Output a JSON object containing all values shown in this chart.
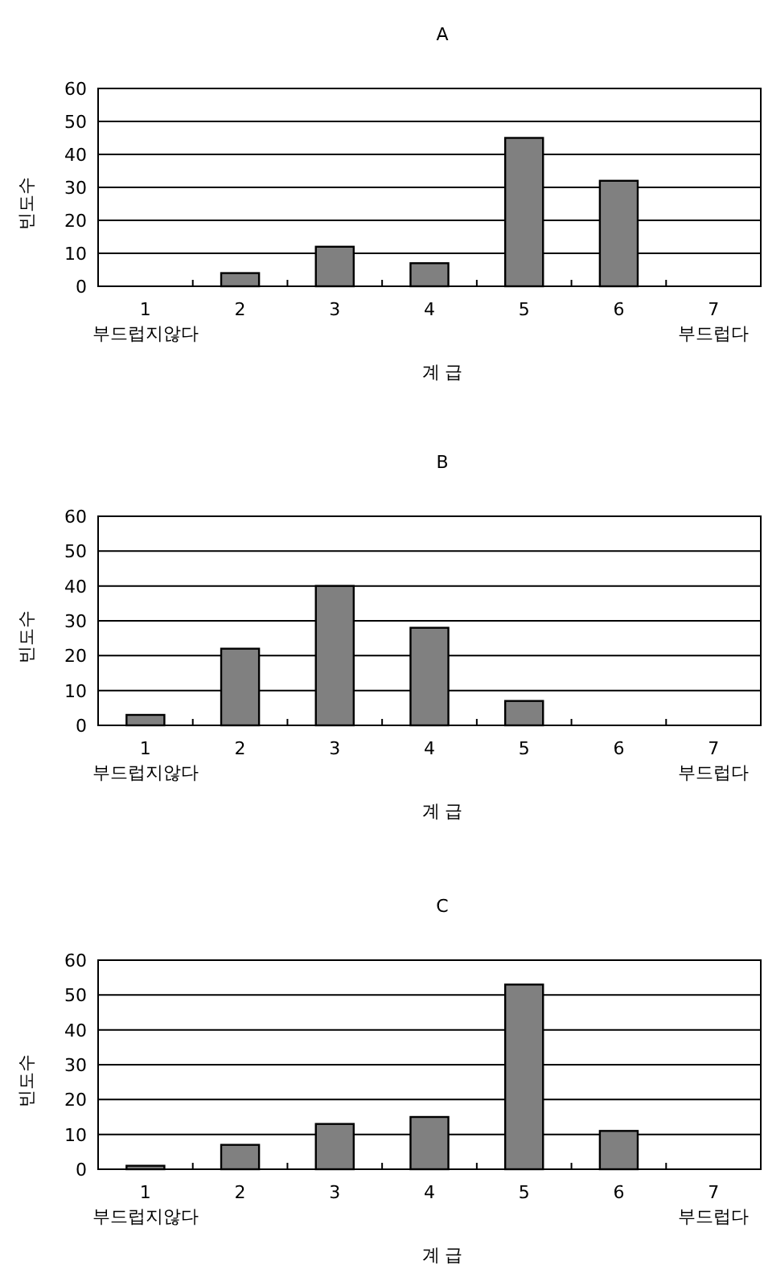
{
  "chart_data": [
    {
      "type": "bar",
      "title": "A",
      "xlabel": "계 급",
      "ylabel": "빈도수",
      "categories": [
        "1\n부드럽지않다",
        "2",
        "3",
        "4",
        "5",
        "6",
        "7\n부드럽다"
      ],
      "values": [
        0,
        4,
        12,
        7,
        45,
        32,
        0
      ],
      "color": "#808080",
      "ylim": [
        0,
        60
      ],
      "yticks": [
        0,
        10,
        20,
        30,
        40,
        50,
        60
      ],
      "grid": "y"
    },
    {
      "type": "bar",
      "title": "B",
      "xlabel": "계 급",
      "ylabel": "빈도수",
      "categories": [
        "1\n부드럽지않다",
        "2",
        "3",
        "4",
        "5",
        "6",
        "7\n부드럽다"
      ],
      "values": [
        3,
        22,
        40,
        28,
        7,
        0,
        0
      ],
      "color": "#808080",
      "ylim": [
        0,
        60
      ],
      "yticks": [
        0,
        10,
        20,
        30,
        40,
        50,
        60
      ],
      "grid": "y"
    },
    {
      "type": "bar",
      "title": "C",
      "xlabel": "계 급",
      "ylabel": "빈도수",
      "categories": [
        "1\n부드럽지않다",
        "2",
        "3",
        "4",
        "5",
        "6",
        "7\n부드럽다"
      ],
      "values": [
        1,
        7,
        13,
        15,
        53,
        11,
        0
      ],
      "color": "#808080",
      "ylim": [
        0,
        60
      ],
      "yticks": [
        0,
        10,
        20,
        30,
        40,
        50,
        60
      ],
      "grid": "y"
    }
  ]
}
